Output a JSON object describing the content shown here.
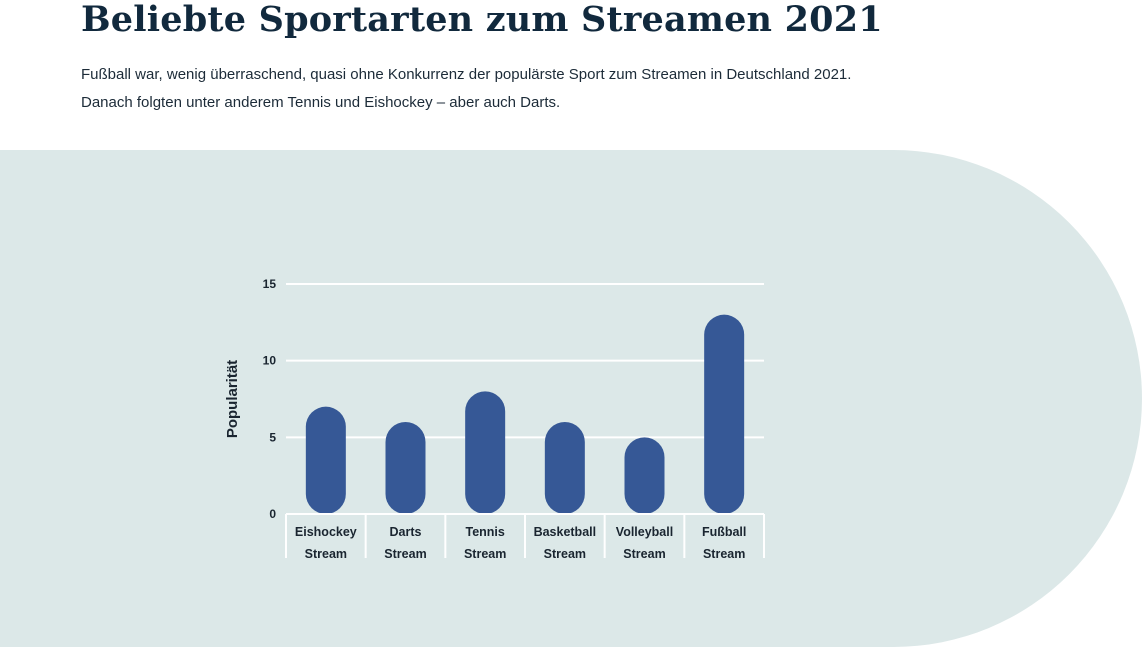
{
  "header": {
    "title": "Beliebte Sportarten zum Streamen 2021",
    "intro_line1": "Fußball war, wenig überraschend, quasi ohne Konkurrenz der populärste Sport zum Streamen in Deutschland 2021.",
    "intro_line2": "Danach folgten unter anderem Tennis und Eishockey – aber auch Darts."
  },
  "colors": {
    "bar": "#365896",
    "panel": "#dce8e8",
    "grid": "#ffffff",
    "text": "#1a2530"
  },
  "chart_data": {
    "type": "bar",
    "categories": [
      [
        "Eishockey",
        "Stream"
      ],
      [
        "Darts",
        "Stream"
      ],
      [
        "Tennis",
        "Stream"
      ],
      [
        "Basketball",
        "Stream"
      ],
      [
        "Volleyball",
        "Stream"
      ],
      [
        "Fußball",
        "Stream"
      ]
    ],
    "values": [
      7,
      6,
      8,
      6,
      5,
      13
    ],
    "ylabel": "Popularität",
    "xlabel": "",
    "ylim": [
      0,
      15
    ],
    "yticks": [
      0,
      5,
      10,
      15
    ],
    "grid": true,
    "bar_shape": "rounded"
  }
}
